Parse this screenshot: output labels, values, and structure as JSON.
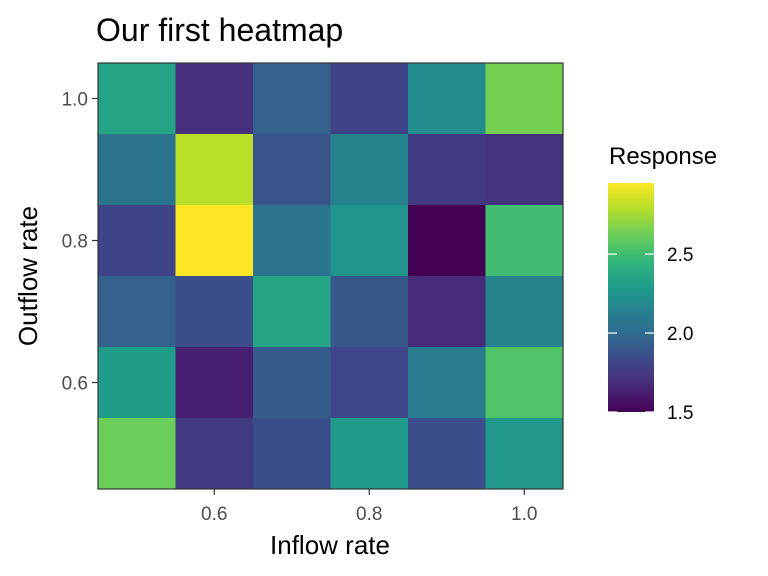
{
  "chart_data": {
    "type": "heatmap",
    "title": "Our first heatmap",
    "xlabel": "Inflow rate",
    "ylabel": "Outflow rate",
    "x": [
      0.5,
      0.6,
      0.7,
      0.8,
      0.9,
      1.0
    ],
    "y": [
      0.5,
      0.6,
      0.7,
      0.8,
      0.9,
      1.0
    ],
    "xlim": [
      0.45,
      1.05
    ],
    "ylim": [
      0.45,
      1.05
    ],
    "x_ticks": [
      0.6,
      0.8,
      1.0
    ],
    "x_tick_labels": [
      "0.6",
      "0.8",
      "1.0"
    ],
    "y_ticks": [
      0.6,
      0.8,
      1.0
    ],
    "y_tick_labels": [
      "0.6",
      "0.8",
      "1.0"
    ],
    "z": [
      [
        2.62,
        1.75,
        1.85,
        2.28,
        1.85,
        2.27
      ],
      [
        2.3,
        1.63,
        1.92,
        1.81,
        2.1,
        2.55
      ],
      [
        1.95,
        1.85,
        2.35,
        1.9,
        1.68,
        2.15
      ],
      [
        1.8,
        2.95,
        2.05,
        2.25,
        1.5,
        2.5
      ],
      [
        2.05,
        2.8,
        1.88,
        2.15,
        1.75,
        1.72
      ],
      [
        2.35,
        1.7,
        1.95,
        1.8,
        2.2,
        2.65
      ]
    ],
    "z_note": "rows ordered by y ascending (0.5 to 1.0), columns by x ascending (0.5 to 1.0)",
    "colorscale": "viridis",
    "colorbar": {
      "title": "Response",
      "range": [
        1.5,
        2.95
      ],
      "ticks": [
        1.5,
        2.0,
        2.5
      ],
      "tick_labels": [
        "1.5",
        "2.0",
        "2.5"
      ]
    },
    "grid": true,
    "legend_position": "right"
  }
}
